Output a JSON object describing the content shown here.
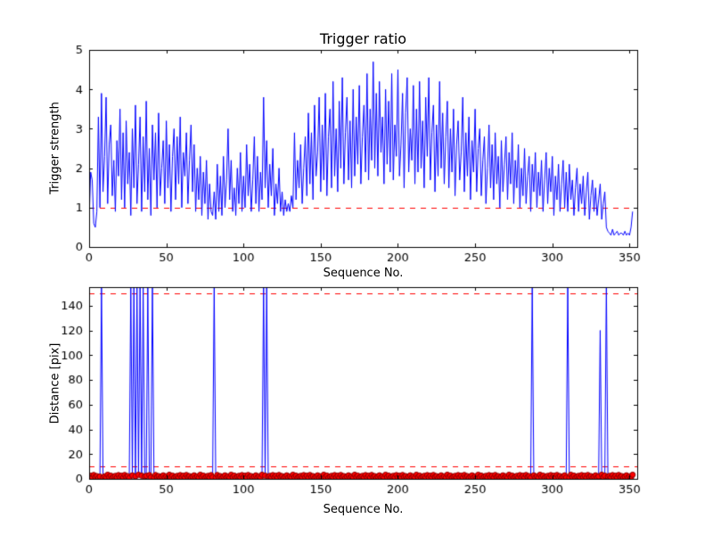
{
  "figure": {
    "background_color": "#ffffff",
    "line_color": "#0000ff",
    "threshold_color": "#ff0000",
    "frame_color": "#000000"
  },
  "chart_data": [
    {
      "type": "line",
      "title": "Trigger ratio",
      "xlabel": "Sequence No.",
      "ylabel": "Trigger strength",
      "xlim": [
        0,
        355
      ],
      "ylim": [
        0,
        5
      ],
      "xticks": [
        0,
        50,
        100,
        150,
        200,
        250,
        300,
        350
      ],
      "yticks": [
        0,
        1,
        2,
        3,
        4,
        5
      ],
      "grid": false,
      "legend": "none",
      "threshold_lines": [
        1
      ],
      "line_color": "#0000ff",
      "threshold_color": "#ff0000",
      "x_start": 0,
      "x_step": 1,
      "values": [
        0.7,
        1.9,
        1.7,
        0.6,
        0.5,
        0.9,
        3.3,
        1.0,
        3.9,
        1.4,
        2.3,
        3.8,
        1.1,
        2.6,
        3.1,
        1.3,
        2.2,
        0.9,
        2.7,
        1.8,
        3.5,
        1.2,
        2.9,
        1.0,
        3.2,
        1.6,
        2.4,
        0.8,
        3.0,
        1.5,
        3.6,
        1.1,
        2.1,
        3.3,
        0.9,
        2.8,
        1.4,
        3.7,
        1.2,
        2.5,
        0.8,
        3.1,
        1.7,
        2.9,
        1.0,
        3.4,
        1.3,
        2.0,
        2.7,
        1.1,
        3.2,
        1.5,
        2.6,
        0.9,
        2.3,
        3.0,
        1.2,
        2.8,
        1.6,
        3.3,
        1.0,
        2.4,
        1.8,
        2.9,
        1.1,
        2.2,
        3.1,
        1.4,
        2.6,
        0.9,
        2.0,
        1.2,
        2.3,
        0.8,
        1.9,
        1.1,
        2.2,
        0.7,
        1.6,
        0.9,
        0.8,
        1.4,
        0.7,
        2.1,
        0.9,
        1.8,
        0.8,
        2.3,
        1.0,
        1.7,
        3.0,
        1.2,
        2.2,
        0.9,
        1.5,
        0.8,
        2.0,
        1.1,
        2.4,
        0.9,
        1.8,
        1.0,
        2.6,
        1.3,
        2.1,
        0.9,
        1.7,
        2.8,
        1.1,
        2.3,
        0.9,
        1.9,
        1.2,
        3.8,
        1.5,
        2.7,
        1.0,
        2.1,
        1.3,
        2.5,
        0.8,
        1.6,
        1.1,
        2.0,
        0.9,
        1.4,
        0.8,
        1.2,
        0.9,
        1.1,
        0.9,
        1.3,
        1.0,
        2.9,
        1.2,
        2.2,
        1.5,
        2.6,
        1.1,
        2.0,
        2.8,
        1.3,
        3.4,
        1.6,
        2.9,
        1.2,
        3.6,
        1.8,
        2.4,
        3.8,
        1.4,
        3.1,
        1.7,
        3.9,
        1.3,
        2.8,
        3.5,
        1.5,
        4.2,
        1.8,
        3.0,
        1.4,
        3.7,
        2.0,
        4.3,
        1.6,
        2.9,
        3.8,
        1.7,
        3.2,
        1.5,
        4.0,
        1.8,
        3.3,
        2.1,
        4.1,
        1.6,
        2.8,
        3.6,
        1.9,
        4.4,
        1.7,
        3.5,
        2.2,
        4.7,
        2.0,
        3.9,
        1.8,
        4.2,
        2.4,
        3.3,
        1.6,
        4.0,
        2.1,
        3.7,
        1.9,
        4.4,
        1.7,
        3.1,
        2.3,
        4.5,
        1.8,
        2.6,
        3.9,
        1.5,
        3.4,
        4.3,
        1.9,
        3.0,
        2.2,
        4.1,
        1.6,
        3.5,
        1.9,
        4.2,
        2.0,
        3.2,
        1.5,
        3.8,
        2.3,
        4.3,
        1.7,
        2.9,
        3.6,
        1.4,
        3.1,
        1.8,
        4.2,
        2.0,
        3.4,
        1.6,
        2.8,
        3.7,
        1.5,
        3.0,
        1.9,
        3.5,
        1.3,
        2.6,
        3.2,
        1.7,
        2.4,
        3.8,
        1.4,
        2.9,
        1.8,
        3.3,
        1.2,
        2.7,
        1.9,
        3.5,
        1.4,
        2.5,
        3.0,
        1.3,
        2.2,
        2.8,
        1.1,
        2.0,
        3.1,
        1.5,
        2.6,
        1.2,
        2.9,
        1.6,
        2.3,
        1.0,
        2.7,
        1.4,
        2.1,
        2.8,
        1.2,
        2.4,
        1.6,
        2.9,
        1.1,
        2.2,
        1.5,
        2.6,
        1.0,
        2.0,
        1.3,
        2.5,
        1.1,
        1.8,
        2.3,
        0.9,
        2.1,
        1.4,
        2.4,
        1.0,
        1.9,
        1.3,
        2.2,
        0.9,
        1.7,
        2.4,
        1.1,
        2.0,
        1.4,
        2.3,
        0.8,
        1.8,
        1.2,
        2.1,
        0.9,
        1.6,
        2.2,
        1.0,
        1.9,
        0.9,
        2.1,
        1.2,
        1.7,
        0.8,
        1.5,
        2.0,
        0.9,
        1.6,
        1.1,
        1.8,
        0.8,
        1.4,
        1.9,
        0.7,
        1.3,
        1.7,
        0.9,
        1.5,
        0.8,
        1.2,
        1.6,
        0.7,
        1.1,
        1.4,
        0.5,
        0.4,
        0.35,
        0.3,
        0.45,
        0.3,
        0.35,
        0.4,
        0.3,
        0.35,
        0.35,
        0.3,
        0.4,
        0.3,
        0.35,
        0.3,
        0.5,
        0.9
      ]
    },
    {
      "type": "line",
      "title": "",
      "xlabel": "Sequence No.",
      "ylabel": "Distance [pix]",
      "xlim": [
        0,
        355
      ],
      "ylim": [
        0,
        155
      ],
      "xticks": [
        0,
        50,
        100,
        150,
        200,
        250,
        300,
        350
      ],
      "yticks": [
        0,
        20,
        40,
        60,
        80,
        100,
        120,
        140
      ],
      "grid": false,
      "legend": "none",
      "threshold_lines": [
        10,
        150
      ],
      "line_color": "#0000ff",
      "threshold_color": "#ff0000",
      "marker": {
        "shape": "circle",
        "fill": "#ff0000",
        "edge": "#880000",
        "radius": 3,
        "max_value": 10
      },
      "x_start": 0,
      "x_step": 1,
      "spike_x_positions": [
        8,
        27,
        29,
        31,
        33,
        35,
        38,
        41,
        81,
        113,
        115,
        287,
        310,
        331,
        335
      ],
      "values": [
        1.2,
        2.5,
        0.8,
        3.1,
        1.5,
        2.2,
        0.6,
        1.8,
        157,
        1.0,
        2.0,
        0.9,
        3.3,
        1.4,
        2.6,
        0.7,
        1.9,
        2.4,
        1.1,
        3.0,
        1.2,
        2.5,
        0.8,
        3.1,
        1.5,
        2.2,
        0.6,
        157,
        2.8,
        157,
        2.0,
        157,
        3.3,
        157,
        2.6,
        157,
        1.9,
        2.4,
        157,
        3.0,
        1.2,
        157,
        0.8,
        3.1,
        1.5,
        2.2,
        0.6,
        1.8,
        2.8,
        1.0,
        2.0,
        0.9,
        3.3,
        1.4,
        2.6,
        0.7,
        1.9,
        2.4,
        1.1,
        3.0,
        1.2,
        2.5,
        0.8,
        3.1,
        1.5,
        2.2,
        0.6,
        1.8,
        2.8,
        1.0,
        2.0,
        0.9,
        3.3,
        1.4,
        2.6,
        0.7,
        1.9,
        2.4,
        1.1,
        3.0,
        1.2,
        157,
        0.8,
        3.1,
        1.5,
        2.2,
        0.6,
        1.8,
        2.8,
        1.0,
        2.0,
        0.9,
        3.3,
        1.4,
        2.6,
        0.7,
        1.9,
        2.4,
        1.1,
        3.0,
        1.2,
        2.5,
        0.8,
        3.1,
        1.5,
        2.2,
        0.6,
        1.8,
        2.8,
        1.0,
        2.0,
        0.9,
        3.3,
        157,
        2.6,
        157,
        1.9,
        2.4,
        1.1,
        3.0,
        1.2,
        2.5,
        0.8,
        3.1,
        1.5,
        2.2,
        0.6,
        1.8,
        2.8,
        1.0,
        2.0,
        0.9,
        3.3,
        1.4,
        2.6,
        0.7,
        1.9,
        2.4,
        1.1,
        3.0,
        1.2,
        2.5,
        0.8,
        3.1,
        1.5,
        2.2,
        0.6,
        1.8,
        2.8,
        1.0,
        2.0,
        0.9,
        3.3,
        1.4,
        2.6,
        0.7,
        1.9,
        2.4,
        1.1,
        3.0,
        1.2,
        2.5,
        0.8,
        3.1,
        1.5,
        2.2,
        0.6,
        1.8,
        2.8,
        1.0,
        2.0,
        0.9,
        3.3,
        1.4,
        2.6,
        0.7,
        1.9,
        2.4,
        1.1,
        3.0,
        1.2,
        2.5,
        0.8,
        3.1,
        1.5,
        2.2,
        0.6,
        1.8,
        2.8,
        1.0,
        2.0,
        0.9,
        3.3,
        1.4,
        2.6,
        0.7,
        1.9,
        2.4,
        1.1,
        3.0,
        1.2,
        2.5,
        0.8,
        3.1,
        1.5,
        2.2,
        0.6,
        1.8,
        2.8,
        1.0,
        2.0,
        0.9,
        3.3,
        1.4,
        2.6,
        0.7,
        1.9,
        2.4,
        1.1,
        3.0,
        1.2,
        2.5,
        0.8,
        3.1,
        1.5,
        2.2,
        0.6,
        1.8,
        2.8,
        1.0,
        2.0,
        0.9,
        3.3,
        1.4,
        2.6,
        0.7,
        1.9,
        2.4,
        1.1,
        3.0,
        1.2,
        2.5,
        0.8,
        3.1,
        1.5,
        2.2,
        0.6,
        1.8,
        2.8,
        1.0,
        2.0,
        0.9,
        3.3,
        1.4,
        2.6,
        0.7,
        1.9,
        2.4,
        1.1,
        3.0,
        1.2,
        2.5,
        0.8,
        3.1,
        1.5,
        2.2,
        0.6,
        1.8,
        2.8,
        1.0,
        2.0,
        0.9,
        3.3,
        1.4,
        2.6,
        0.7,
        1.9,
        2.4,
        1.1,
        3.0,
        1.2,
        2.5,
        0.8,
        3.1,
        1.5,
        2.2,
        0.6,
        157,
        2.8,
        1.0,
        2.0,
        0.9,
        3.3,
        1.4,
        2.6,
        0.7,
        1.9,
        2.4,
        1.1,
        3.0,
        1.2,
        2.5,
        0.8,
        3.1,
        1.5,
        2.2,
        0.6,
        1.8,
        2.8,
        1.0,
        157,
        0.9,
        3.3,
        1.4,
        2.6,
        0.7,
        1.9,
        2.4,
        1.1,
        3.0,
        1.2,
        2.5,
        0.8,
        3.1,
        1.5,
        2.2,
        0.6,
        1.8,
        2.8,
        1.0,
        2.0,
        120,
        3.3,
        1.4,
        2.6,
        157,
        1.9,
        2.4,
        1.1,
        3.0,
        1.2,
        2.5,
        0.8,
        3.1,
        1.5,
        2.2,
        0.6,
        1.8,
        2.8,
        1.0,
        2.0,
        0.9,
        3.3
      ]
    }
  ]
}
